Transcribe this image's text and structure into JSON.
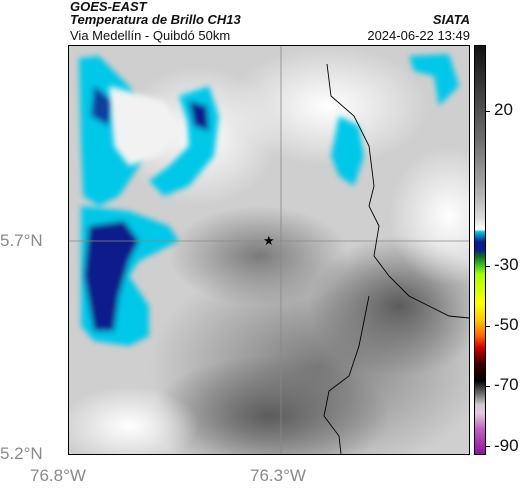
{
  "header": {
    "satellite": "GOES-EAST",
    "title": "Temperatura de Brillo CH13",
    "organization": "SIATA",
    "subtitle": "Via Medellín - Quibdó 50km",
    "datetime": "2024-06-22 13:49"
  },
  "map": {
    "lat_labels": [
      "5.7°N",
      "5.2°N"
    ],
    "lon_labels": [
      "76.8°W",
      "76.3°W"
    ],
    "marker_icon": "star-icon",
    "colors": {
      "cold_cloud": "#00c8e8",
      "very_cold_cloud": "#0a1f8a",
      "gridline": "#888888",
      "boundary": "#000000"
    }
  },
  "colorbar": {
    "labels": [
      "20",
      "-30",
      "-50",
      "-70",
      "-90"
    ]
  }
}
